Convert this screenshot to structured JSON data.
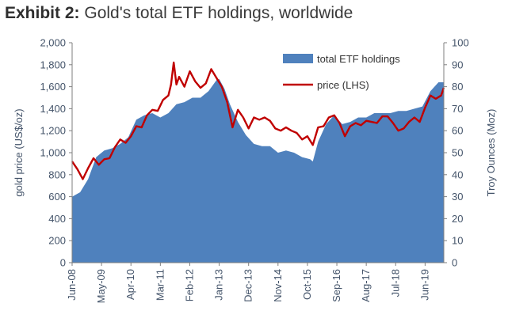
{
  "title": {
    "prefix": "Exhibit 2:",
    "text": "Gold's total ETF holdings, worldwide"
  },
  "chart_data": {
    "type": "area",
    "title": "Gold's total ETF holdings, worldwide",
    "ylabel_left": "gold price (US$/oz)",
    "ylabel_right": "Troy Ounces (Moz)",
    "ylim_left": [
      0,
      2000
    ],
    "ylim_right": [
      0,
      100
    ],
    "yticks_left": [
      "0",
      "200",
      "400",
      "600",
      "800",
      "1,000",
      "1,200",
      "1,400",
      "1,600",
      "1,800",
      "2,000"
    ],
    "yticks_right": [
      "0",
      "10",
      "20",
      "30",
      "40",
      "50",
      "60",
      "70",
      "80",
      "90",
      "100"
    ],
    "xlim": [
      "2008-06",
      "2020-01"
    ],
    "xticks": [
      "Jun-08",
      "May-09",
      "Apr-10",
      "Mar-11",
      "Feb-12",
      "Jan-13",
      "Dec-13",
      "Nov-14",
      "Oct-15",
      "Sep-16",
      "Aug-17",
      "Jul-18",
      "Jun-19"
    ],
    "legend_position": "top-right",
    "grid": false,
    "colors": {
      "holdings": "#4f81bd",
      "price": "#c00000"
    },
    "series": [
      {
        "name": "total ETF holdings",
        "kind": "area",
        "axis": "right",
        "points": [
          [
            "2008-06",
            30
          ],
          [
            "2008-09",
            32
          ],
          [
            "2008-12",
            38
          ],
          [
            "2009-03",
            48
          ],
          [
            "2009-06",
            51
          ],
          [
            "2009-09",
            52
          ],
          [
            "2009-12",
            54
          ],
          [
            "2010-03",
            57
          ],
          [
            "2010-06",
            65
          ],
          [
            "2010-09",
            67
          ],
          [
            "2010-12",
            68
          ],
          [
            "2011-03",
            66
          ],
          [
            "2011-06",
            68
          ],
          [
            "2011-09",
            72
          ],
          [
            "2011-12",
            73
          ],
          [
            "2012-03",
            75
          ],
          [
            "2012-06",
            75
          ],
          [
            "2012-09",
            78
          ],
          [
            "2012-12",
            83
          ],
          [
            "2013-01",
            83.5
          ],
          [
            "2013-03",
            79
          ],
          [
            "2013-05",
            72
          ],
          [
            "2013-08",
            64
          ],
          [
            "2013-11",
            58
          ],
          [
            "2014-02",
            54
          ],
          [
            "2014-05",
            53
          ],
          [
            "2014-08",
            53
          ],
          [
            "2014-11",
            50
          ],
          [
            "2015-02",
            51
          ],
          [
            "2015-05",
            50
          ],
          [
            "2015-08",
            48
          ],
          [
            "2015-11",
            47
          ],
          [
            "2015-12",
            46
          ],
          [
            "2016-02",
            55
          ],
          [
            "2016-05",
            63
          ],
          [
            "2016-08",
            67
          ],
          [
            "2016-11",
            63
          ],
          [
            "2017-02",
            64
          ],
          [
            "2017-05",
            66
          ],
          [
            "2017-08",
            66
          ],
          [
            "2017-11",
            68
          ],
          [
            "2018-02",
            68
          ],
          [
            "2018-05",
            68
          ],
          [
            "2018-08",
            69
          ],
          [
            "2018-11",
            69
          ],
          [
            "2019-02",
            70
          ],
          [
            "2019-05",
            71
          ],
          [
            "2019-08",
            78
          ],
          [
            "2019-11",
            82
          ],
          [
            "2020-01",
            82
          ]
        ]
      },
      {
        "name": "price (LHS)",
        "kind": "line",
        "axis": "left",
        "points": [
          [
            "2008-06",
            920
          ],
          [
            "2008-08",
            850
          ],
          [
            "2008-10",
            760
          ],
          [
            "2008-12",
            860
          ],
          [
            "2009-02",
            950
          ],
          [
            "2009-04",
            890
          ],
          [
            "2009-06",
            940
          ],
          [
            "2009-08",
            950
          ],
          [
            "2009-10",
            1050
          ],
          [
            "2009-12",
            1120
          ],
          [
            "2010-02",
            1090
          ],
          [
            "2010-04",
            1150
          ],
          [
            "2010-06",
            1240
          ],
          [
            "2010-08",
            1230
          ],
          [
            "2010-10",
            1340
          ],
          [
            "2010-12",
            1390
          ],
          [
            "2011-02",
            1380
          ],
          [
            "2011-04",
            1480
          ],
          [
            "2011-06",
            1520
          ],
          [
            "2011-07",
            1620
          ],
          [
            "2011-08",
            1820
          ],
          [
            "2011-09",
            1620
          ],
          [
            "2011-10",
            1690
          ],
          [
            "2011-12",
            1600
          ],
          [
            "2012-02",
            1740
          ],
          [
            "2012-04",
            1650
          ],
          [
            "2012-06",
            1590
          ],
          [
            "2012-08",
            1630
          ],
          [
            "2012-10",
            1760
          ],
          [
            "2012-12",
            1680
          ],
          [
            "2013-02",
            1600
          ],
          [
            "2013-04",
            1460
          ],
          [
            "2013-06",
            1230
          ],
          [
            "2013-08",
            1390
          ],
          [
            "2013-10",
            1320
          ],
          [
            "2013-12",
            1220
          ],
          [
            "2014-02",
            1320
          ],
          [
            "2014-04",
            1300
          ],
          [
            "2014-06",
            1320
          ],
          [
            "2014-08",
            1290
          ],
          [
            "2014-10",
            1220
          ],
          [
            "2014-12",
            1200
          ],
          [
            "2015-02",
            1230
          ],
          [
            "2015-04",
            1200
          ],
          [
            "2015-06",
            1180
          ],
          [
            "2015-08",
            1120
          ],
          [
            "2015-10",
            1150
          ],
          [
            "2015-12",
            1070
          ],
          [
            "2016-02",
            1230
          ],
          [
            "2016-04",
            1240
          ],
          [
            "2016-06",
            1320
          ],
          [
            "2016-08",
            1340
          ],
          [
            "2016-10",
            1270
          ],
          [
            "2016-12",
            1150
          ],
          [
            "2017-02",
            1240
          ],
          [
            "2017-04",
            1270
          ],
          [
            "2017-06",
            1250
          ],
          [
            "2017-08",
            1290
          ],
          [
            "2017-10",
            1280
          ],
          [
            "2017-12",
            1270
          ],
          [
            "2018-02",
            1330
          ],
          [
            "2018-04",
            1330
          ],
          [
            "2018-06",
            1270
          ],
          [
            "2018-08",
            1200
          ],
          [
            "2018-10",
            1220
          ],
          [
            "2018-12",
            1280
          ],
          [
            "2019-02",
            1320
          ],
          [
            "2019-04",
            1280
          ],
          [
            "2019-06",
            1410
          ],
          [
            "2019-08",
            1520
          ],
          [
            "2019-10",
            1490
          ],
          [
            "2019-12",
            1520
          ],
          [
            "2020-01",
            1590
          ]
        ]
      }
    ]
  }
}
